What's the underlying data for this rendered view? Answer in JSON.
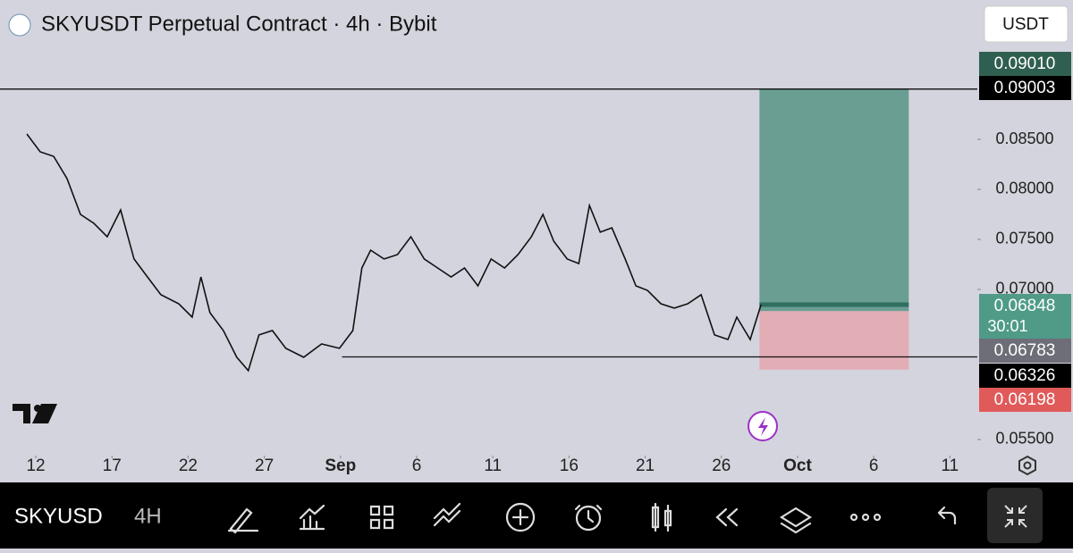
{
  "header": {
    "title": "SKYUSDT Perpetual Contract · 4h · Bybit",
    "currency": "USDT"
  },
  "chart_data": {
    "type": "line",
    "x": [
      -0.59,
      0.29,
      1.17,
      2.05,
      2.93,
      3.81,
      4.69,
      5.57,
      6.45,
      7.33,
      8.21,
      9.38,
      10.26,
      10.84,
      11.43,
      12.31,
      13.19,
      13.95,
      14.65,
      15.53,
      16.41,
      17.58,
      18.76,
      19.93,
      20.81,
      21.4,
      21.98,
      22.86,
      23.74,
      24.62,
      25.5,
      26.38,
      27.26,
      28.14,
      29.02,
      29.89,
      30.77,
      31.65,
      32.53,
      33.29,
      34.0,
      34.88,
      35.64,
      36.34,
      37.05,
      37.81,
      38.69,
      39.39,
      40.15,
      41.03,
      41.91,
      42.79,
      43.67,
      44.55,
      45.43,
      46.01,
      46.89,
      47.6
    ],
    "series": [
      {
        "color": "#111111",
        "values": [
          0.08554,
          0.08375,
          0.0833,
          0.08107,
          0.0775,
          0.07661,
          0.07527,
          0.07795,
          0.07304,
          0.07125,
          0.06947,
          0.06857,
          0.06723,
          0.07125,
          0.06768,
          0.06589,
          0.06322,
          0.06188,
          0.06545,
          0.06589,
          0.06411,
          0.06322,
          0.06455,
          0.06411,
          0.06589,
          0.07214,
          0.07393,
          0.07304,
          0.07348,
          0.07527,
          0.07304,
          0.07214,
          0.07125,
          0.07214,
          0.07036,
          0.07304,
          0.07214,
          0.07348,
          0.07527,
          0.0775,
          0.07482,
          0.07304,
          0.07259,
          0.07839,
          0.07572,
          0.07616,
          0.07304,
          0.07036,
          0.06991,
          0.06857,
          0.06813,
          0.06857,
          0.06947,
          0.06545,
          0.065,
          0.06723,
          0.065,
          0.06848
        ]
      }
    ],
    "xlim": [
      -2.35,
      61.8
    ],
    "ylim": [
      0.05339,
      0.09893
    ],
    "xticks": [
      {
        "value": 0,
        "label": "12"
      },
      {
        "value": 5,
        "label": "17"
      },
      {
        "value": 10,
        "label": "22"
      },
      {
        "value": 15,
        "label": "27"
      },
      {
        "value": 20,
        "label": "Sep"
      },
      {
        "value": 25,
        "label": "6"
      },
      {
        "value": 30,
        "label": "11"
      },
      {
        "value": 35,
        "label": "16"
      },
      {
        "value": 40,
        "label": "21"
      },
      {
        "value": 45,
        "label": "26"
      },
      {
        "value": 50,
        "label": "Oct"
      },
      {
        "value": 55,
        "label": "6"
      },
      {
        "value": 60,
        "label": "11"
      }
    ],
    "yticks": [
      {
        "value": 0.055,
        "label": "0.05500"
      },
      {
        "value": 0.07,
        "label": "0.07000"
      },
      {
        "value": 0.075,
        "label": "0.07500"
      },
      {
        "value": 0.08,
        "label": "0.08000"
      },
      {
        "value": 0.085,
        "label": "0.08500"
      }
    ],
    "levels": [
      {
        "value": 0.09003,
        "label": "0.09003",
        "xlim": [
          -2.35,
          61.8
        ]
      },
      {
        "value": 0.06326,
        "label": "0.06326",
        "xlim": [
          20.1,
          61.8
        ]
      }
    ],
    "position": {
      "x": [
        47.5,
        57.3
      ],
      "target": {
        "value": 0.0901,
        "label": "0.09010"
      },
      "entry": {
        "value": 0.06783,
        "label": "0.06783"
      },
      "stop": {
        "value": 0.06198,
        "label": "0.06198"
      }
    },
    "current": {
      "value": 0.06848,
      "label": "0.06848",
      "countdown": "30:01"
    }
  },
  "toolbar": {
    "symbol": "SKYUSD",
    "interval": "4H"
  }
}
